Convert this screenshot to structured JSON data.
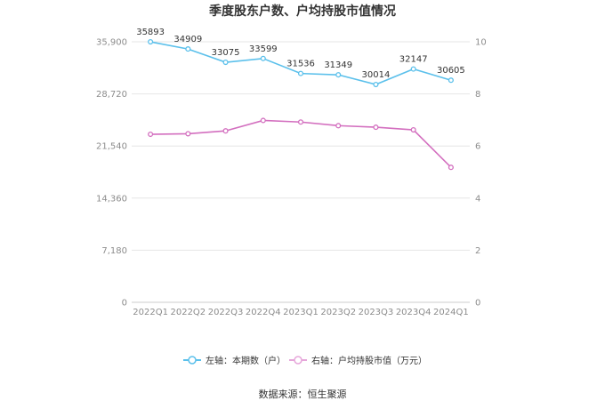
{
  "chart_data": {
    "type": "line",
    "title": "季度股东户数、户均持股市值情况",
    "categories": [
      "2022Q1",
      "2022Q2",
      "2022Q3",
      "2022Q4",
      "2023Q1",
      "2023Q2",
      "2023Q3",
      "2023Q4",
      "2024Q1"
    ],
    "left_axis": {
      "min": 0,
      "max": 35900,
      "ticks": [
        "0",
        "7,180",
        "14,360",
        "21,540",
        "28,720",
        "35,900"
      ],
      "tick_values": [
        0,
        7180,
        14360,
        21540,
        28720,
        35900
      ]
    },
    "right_axis": {
      "min": 0,
      "max": 10,
      "ticks": [
        "0",
        "2",
        "4",
        "6",
        "8",
        "10"
      ],
      "tick_values": [
        0,
        2,
        4,
        6,
        8,
        10
      ]
    },
    "series": [
      {
        "name": "左轴：本期数（户）",
        "axis": "left",
        "color": "#5bc0eb",
        "values": [
          35893,
          34909,
          33075,
          33599,
          31536,
          31349,
          30014,
          32147,
          30605
        ],
        "labels": [
          "35893",
          "34909",
          "33075",
          "33599",
          "31536",
          "31349",
          "30014",
          "32147",
          "30605"
        ]
      },
      {
        "name": "右轴：户均持股市值（万元）",
        "axis": "right",
        "color": "#d36fbf",
        "values": [
          6.45,
          6.47,
          6.58,
          6.98,
          6.92,
          6.78,
          6.72,
          6.62,
          5.18
        ]
      }
    ],
    "grid": true,
    "legend_position": "bottom-center"
  },
  "source": "数据来源：恒生聚源"
}
